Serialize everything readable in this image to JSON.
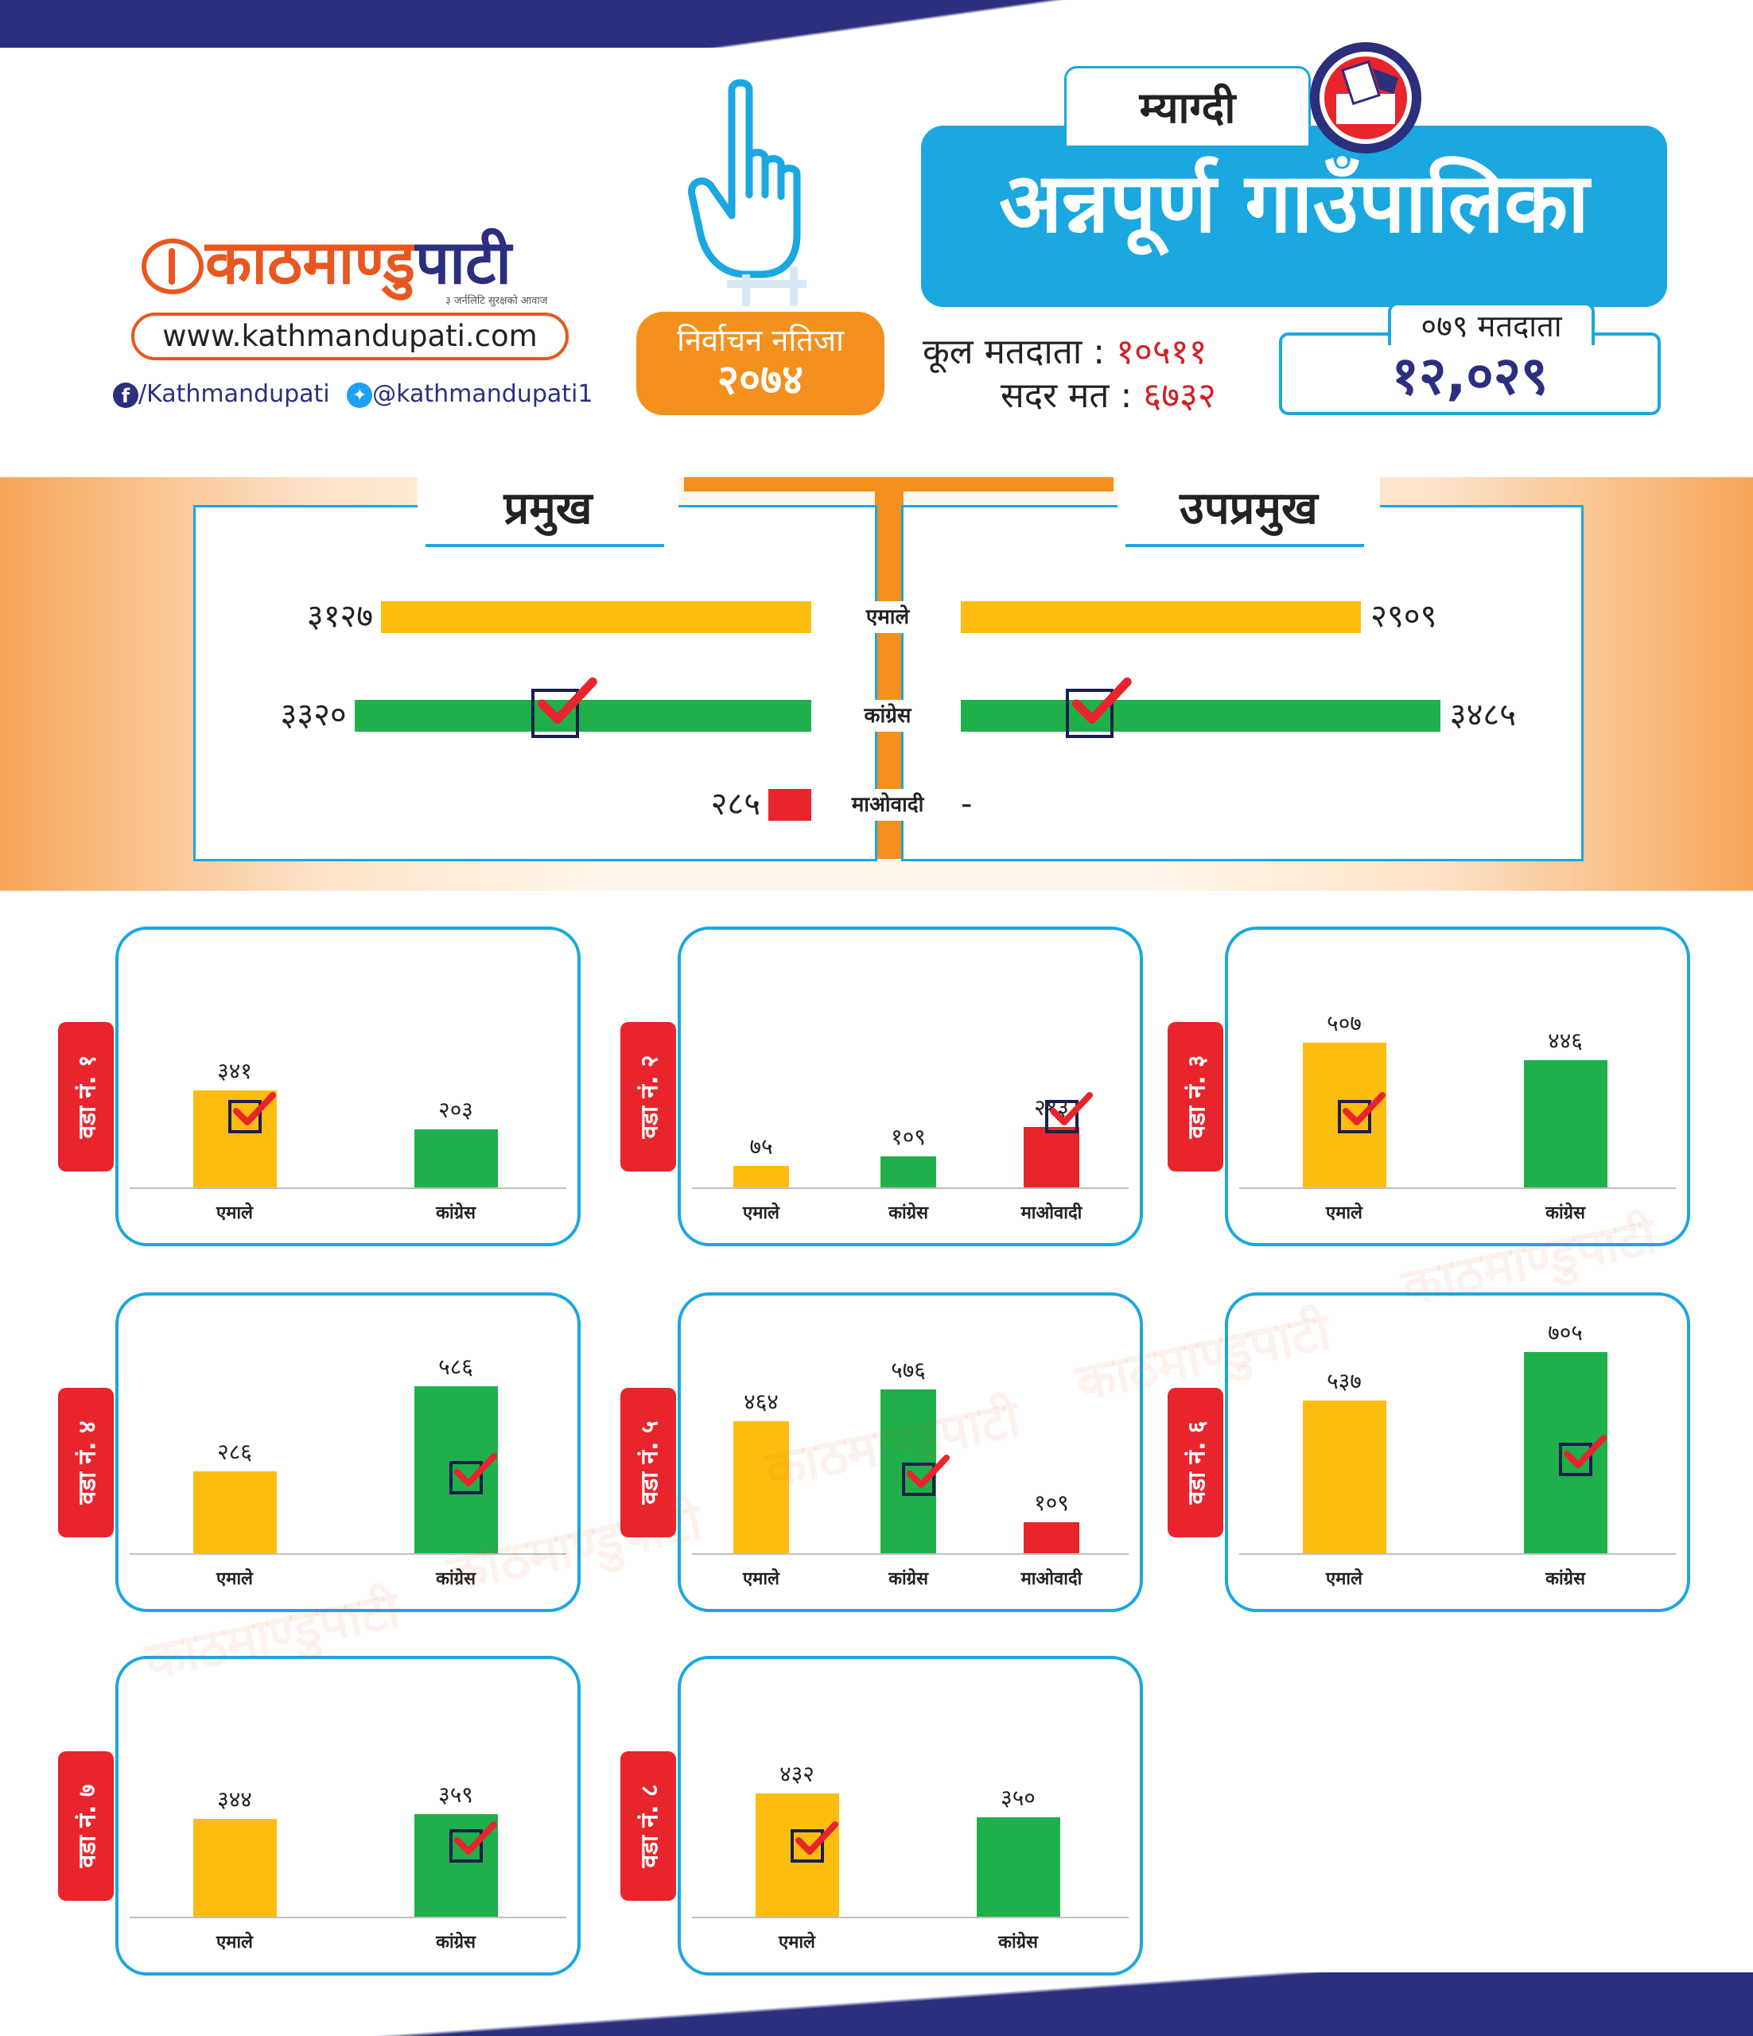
{
  "header": {
    "logo_main": "काठमाण्डु",
    "logo_accent": "पाटी",
    "logo_tagline": "३ जर्नलिटि सुरक्षको आवाज",
    "url": "www.kathmandupati.com",
    "facebook": "/Kathmandupati",
    "twitter": "@kathmandupati1",
    "badge_line1": "निर्वाचन नतिजा",
    "badge_line2": "२०७४",
    "district": "म्याग्दी",
    "title": "अन्नपूर्ण गाउँपालिका",
    "total_voters_label": "कूल मतदाता :",
    "total_voters_value": "१०५११",
    "valid_votes_label": "सदर मत :",
    "valid_votes_value": "६७३२",
    "voters_079_label": "०७९ मतदाता",
    "voters_079_value": "१२,०२९"
  },
  "colors": {
    "एमाले": "#fdbd10",
    "कांग्रेस": "#1fb04b",
    "माओवादी": "#e8242c",
    "accent_blue": "#1ba7e0",
    "accent_orange": "#f4901e",
    "navy": "#2c2f7e"
  },
  "chart_data": [
    {
      "type": "bar",
      "title": "प्रमुख",
      "categories": [
        "एमाले",
        "कांग्रेस",
        "माओवादी"
      ],
      "values": [
        3127,
        3320,
        285
      ],
      "value_labels": [
        "३१२७",
        "३३२०",
        "२८५"
      ],
      "winner": "कांग्रेस"
    },
    {
      "type": "bar",
      "title": "उपप्रमुख",
      "categories": [
        "एमाले",
        "कांग्रेस",
        "माओवादी"
      ],
      "values": [
        2909,
        3485,
        null
      ],
      "value_labels": [
        "२९०९",
        "३४८५",
        "-"
      ],
      "winner": "कांग्रेस"
    },
    {
      "type": "bar",
      "title": "वडा नं. १",
      "categories": [
        "एमाले",
        "कांग्रेस"
      ],
      "values": [
        341,
        203
      ],
      "value_labels": [
        "३४१",
        "२०३"
      ],
      "winner": "एमाले"
    },
    {
      "type": "bar",
      "title": "वडा नं. २",
      "categories": [
        "एमाले",
        "कांग्रेस",
        "माओवादी"
      ],
      "values": [
        75,
        109,
        213
      ],
      "value_labels": [
        "७५",
        "१०९",
        "२१३"
      ],
      "winner": "माओवादी"
    },
    {
      "type": "bar",
      "title": "वडा नं. ३",
      "categories": [
        "एमाले",
        "कांग्रेस"
      ],
      "values": [
        507,
        446
      ],
      "value_labels": [
        "५०७",
        "४४६"
      ],
      "winner": "एमाले"
    },
    {
      "type": "bar",
      "title": "वडा नं. ४",
      "categories": [
        "एमाले",
        "कांग्रेस"
      ],
      "values": [
        286,
        586
      ],
      "value_labels": [
        "२८६",
        "५८६"
      ],
      "winner": "कांग्रेस"
    },
    {
      "type": "bar",
      "title": "वडा नं. ५",
      "categories": [
        "एमाले",
        "कांग्रेस",
        "माओवादी"
      ],
      "values": [
        464,
        576,
        109
      ],
      "value_labels": [
        "४६४",
        "५७६",
        "१०९"
      ],
      "winner": "कांग्रेस"
    },
    {
      "type": "bar",
      "title": "वडा नं. ६",
      "categories": [
        "एमाले",
        "कांग्रेस"
      ],
      "values": [
        537,
        705
      ],
      "value_labels": [
        "५३७",
        "७०५"
      ],
      "winner": "कांग्रेस"
    },
    {
      "type": "bar",
      "title": "वडा नं. ७",
      "categories": [
        "एमाले",
        "कांग्रेस"
      ],
      "values": [
        344,
        359
      ],
      "value_labels": [
        "३४४",
        "३५९"
      ],
      "winner": "कांग्रेस"
    },
    {
      "type": "bar",
      "title": "वडा नं. ८",
      "categories": [
        "एमाले",
        "कांग्रेस"
      ],
      "values": [
        432,
        350
      ],
      "value_labels": [
        "४३२",
        "३५०"
      ],
      "winner": "एमाले"
    }
  ]
}
